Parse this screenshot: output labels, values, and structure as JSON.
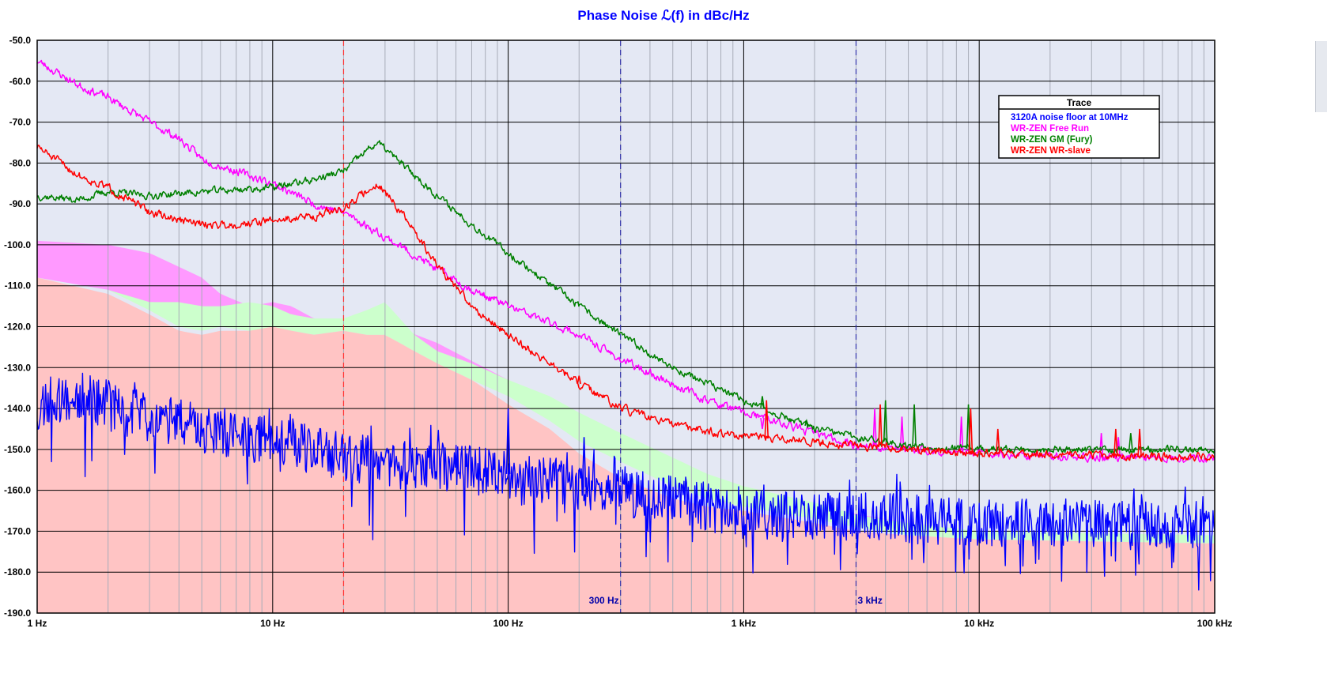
{
  "chart_data": {
    "type": "line",
    "title": "Phase Noise ℒ(f) in dBc/Hz",
    "x_scale": "log",
    "xlim": [
      1,
      100000
    ],
    "ylim": [
      -190,
      -50
    ],
    "y_ticks": [
      -50,
      -60,
      -70,
      -80,
      -90,
      -100,
      -110,
      -120,
      -130,
      -140,
      -150,
      -160,
      -170,
      -180,
      -190
    ],
    "y_tick_labels": [
      "-50.0",
      "-60.0",
      "-70.0",
      "-80.0",
      "-90.0",
      "-100.0",
      "-110.0",
      "-120.0",
      "-130.0",
      "-140.0",
      "-150.0",
      "-160.0",
      "-170.0",
      "-180.0",
      "-190.0"
    ],
    "x_ticks": [
      1,
      10,
      100,
      1000,
      10000,
      100000
    ],
    "x_tick_labels": [
      "1 Hz",
      "10 Hz",
      "100 Hz",
      "1 kHz",
      "10 kHz",
      "100 kHz"
    ],
    "grid": true,
    "background": "#e4e8f4",
    "markers": [
      {
        "x": 20,
        "color": "#ff3333",
        "style": "dashed",
        "label": ""
      },
      {
        "x": 300,
        "color": "#3333aa",
        "style": "dashed",
        "label": "300 Hz"
      },
      {
        "x": 3000,
        "color": "#3333aa",
        "style": "dashed",
        "label": "3 kHz"
      }
    ],
    "legend": {
      "title": "Trace",
      "placement": "top-right",
      "entries": [
        {
          "label": "3120A noise floor at 10MHz",
          "color": "#0000ff"
        },
        {
          "label": "WR-ZEN Free Run",
          "color": "#ff00ff"
        },
        {
          "label": "WR-ZEN GM (Fury)",
          "color": "#008000"
        },
        {
          "label": "WR-ZEN WR-slave",
          "color": "#ff0000"
        }
      ]
    },
    "bands": [
      {
        "color": "#ff99ff",
        "x": [
          1,
          2,
          3,
          5,
          6,
          8,
          10,
          12,
          15,
          20,
          30,
          50,
          100,
          200,
          500,
          1000,
          2000,
          5000,
          10000,
          100000
        ],
        "upper": [
          -99,
          -100,
          -102,
          -108,
          -112,
          -115,
          -114,
          -115,
          -118,
          -119,
          -119,
          -124,
          -133,
          -143,
          -155,
          -161,
          -164,
          -168,
          -170,
          -172
        ],
        "lower": [
          -108,
          -111,
          -115,
          -118,
          -119,
          -120,
          -121,
          -121,
          -122,
          -121,
          -122,
          -127,
          -136,
          -145,
          -157,
          -163,
          -166,
          -169,
          -171,
          -173
        ]
      },
      {
        "color": "#ccffcc",
        "x": [
          1,
          2,
          3,
          4,
          5,
          6,
          8,
          10,
          12,
          15,
          20,
          25,
          30,
          40,
          50,
          70,
          100,
          150,
          200,
          300,
          500,
          700,
          1000,
          2000,
          3000,
          5000,
          10000,
          100000
        ],
        "upper": [
          -108,
          -111,
          -114,
          -114,
          -115,
          -115,
          -114,
          -115,
          -117,
          -118,
          -118,
          -116,
          -114,
          -122,
          -126,
          -129,
          -133,
          -137,
          -141,
          -146,
          -152,
          -156,
          -159,
          -163,
          -166,
          -168,
          -170,
          -171
        ],
        "lower": [
          -108,
          -111,
          -116,
          -120,
          -121,
          -120,
          -121,
          -121,
          -121,
          -122,
          -121,
          -122,
          -122,
          -126,
          -129,
          -133,
          -137,
          -143,
          -148,
          -153,
          -159,
          -162,
          -164,
          -167,
          -169,
          -171,
          -172,
          -173
        ]
      },
      {
        "color": "#ffc4c4",
        "x": [
          1,
          2,
          3,
          4,
          5,
          6,
          8,
          10,
          12,
          15,
          20,
          25,
          30,
          40,
          50,
          70,
          100,
          150,
          200,
          300,
          500,
          700,
          1000,
          2000,
          3000,
          5000,
          10000,
          100000
        ],
        "upper": [
          -108,
          -112,
          -117,
          -121,
          -122,
          -121,
          -121,
          -120,
          -121,
          -122,
          -121,
          -122,
          -122,
          -126,
          -129,
          -133,
          -139,
          -145,
          -151,
          -157,
          -162,
          -164,
          -165,
          -168,
          -170,
          -171,
          -172,
          -173
        ],
        "lower": [
          -190,
          -190,
          -190,
          -190,
          -190,
          -190,
          -190,
          -190,
          -190,
          -190,
          -190,
          -190,
          -190,
          -190,
          -190,
          -190,
          -190,
          -190,
          -190,
          -190,
          -190,
          -190,
          -190,
          -190,
          -190,
          -190,
          -190,
          -190
        ]
      }
    ],
    "series": [
      {
        "name": "3120A noise floor at 10MHz",
        "color": "#0000ff",
        "noise": 6,
        "seed": 11,
        "x": [
          1,
          1.5,
          2,
          3,
          5,
          10,
          20,
          50,
          100,
          200,
          300,
          500,
          1000,
          2000,
          3000,
          5000,
          10000,
          20000,
          100000
        ],
        "y": [
          -140,
          -137,
          -139,
          -142,
          -145,
          -148,
          -152,
          -154,
          -156,
          -159,
          -161,
          -162,
          -166,
          -166,
          -166,
          -167,
          -168,
          -168,
          -169
        ],
        "spurs": [
          {
            "x": 100,
            "y": -140
          },
          {
            "x": 210,
            "y": -147
          }
        ]
      },
      {
        "name": "WR-ZEN Free Run",
        "color": "#ff00ff",
        "noise": 0.9,
        "seed": 23,
        "x": [
          1,
          1.5,
          2,
          3,
          4,
          5,
          7,
          10,
          15,
          20,
          30,
          50,
          70,
          100,
          200,
          300,
          500,
          700,
          1000,
          2000,
          3000,
          5000,
          10000,
          30000,
          100000
        ],
        "y": [
          -55,
          -61,
          -64,
          -70,
          -74,
          -79,
          -82,
          -85,
          -90,
          -92,
          -98,
          -106,
          -111,
          -115,
          -122,
          -128,
          -134,
          -138,
          -141,
          -146,
          -149,
          -150,
          -151,
          -152,
          -152
        ],
        "spurs": [
          {
            "x": 1200,
            "y": -145
          },
          {
            "x": 3600,
            "y": -140
          },
          {
            "x": 4700,
            "y": -142
          },
          {
            "x": 8400,
            "y": -142
          },
          {
            "x": 33000,
            "y": -146
          },
          {
            "x": 39000,
            "y": -147
          }
        ]
      },
      {
        "name": "WR-ZEN GM (Fury)",
        "color": "#008000",
        "noise": 0.8,
        "seed": 37,
        "x": [
          1,
          1.5,
          2,
          3,
          5,
          10,
          15,
          20,
          25,
          28,
          35,
          50,
          70,
          100,
          200,
          300,
          500,
          1000,
          2000,
          3000,
          5000,
          10000,
          100000
        ],
        "y": [
          -88,
          -89,
          -87,
          -88,
          -87,
          -86,
          -84,
          -82,
          -77,
          -75,
          -80,
          -88,
          -95,
          -102,
          -115,
          -122,
          -130,
          -138,
          -145,
          -147,
          -149,
          -150,
          -150
        ],
        "spurs": [
          {
            "x": 1200,
            "y": -137
          },
          {
            "x": 1850,
            "y": -143
          },
          {
            "x": 4000,
            "y": -138
          },
          {
            "x": 5300,
            "y": -139
          },
          {
            "x": 9000,
            "y": -139
          },
          {
            "x": 44000,
            "y": -146
          }
        ]
      },
      {
        "name": "WR-ZEN WR-slave",
        "color": "#ff0000",
        "noise": 0.9,
        "seed": 51,
        "x": [
          1,
          1.5,
          2,
          3,
          4,
          5,
          7,
          10,
          15,
          20,
          25,
          28,
          35,
          50,
          70,
          100,
          200,
          300,
          500,
          1000,
          2000,
          3000,
          5000,
          10000,
          100000
        ],
        "y": [
          -76,
          -83,
          -86,
          -92,
          -94,
          -95,
          -95,
          -94,
          -93,
          -91,
          -87,
          -85,
          -92,
          -105,
          -115,
          -122,
          -134,
          -140,
          -144,
          -147,
          -148,
          -149,
          -150,
          -151,
          -152
        ],
        "spurs": [
          {
            "x": 200,
            "y": -132
          },
          {
            "x": 1250,
            "y": -138
          },
          {
            "x": 3800,
            "y": -139
          },
          {
            "x": 9200,
            "y": -140
          },
          {
            "x": 12000,
            "y": -145
          },
          {
            "x": 38000,
            "y": -145
          },
          {
            "x": 48000,
            "y": -145
          }
        ]
      }
    ]
  }
}
